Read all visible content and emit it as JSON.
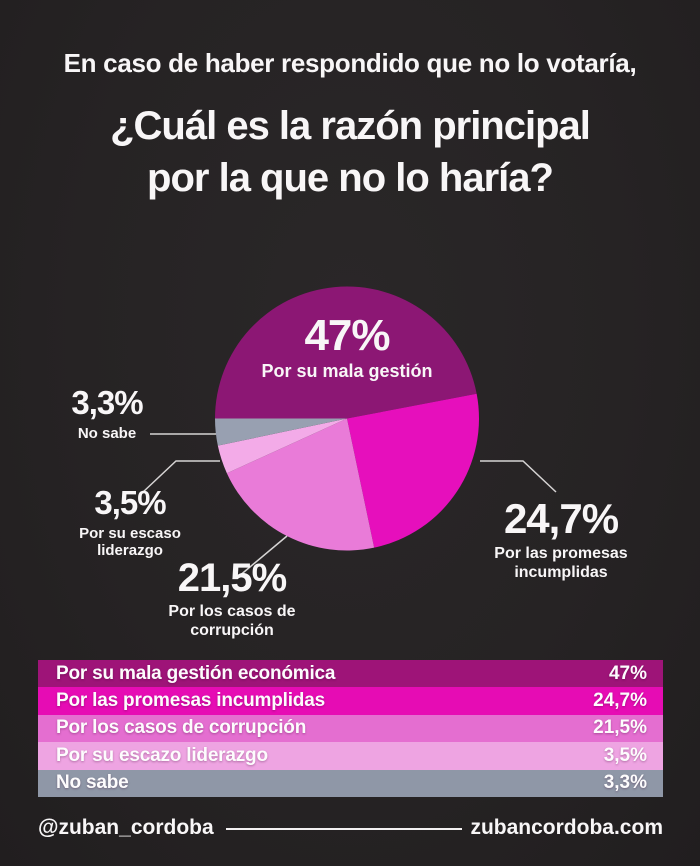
{
  "header": {
    "intro": "En caso de haber respondido que no lo votaría,",
    "question_line1": "¿Cuál es la razón principal",
    "question_line2": "por la que no lo haría?"
  },
  "chart_data": {
    "type": "pie",
    "title": "¿Cuál es la razón principal por la que no lo haría?",
    "direction": "clockwise",
    "start_angle_deg": 180,
    "legend_position": "callout-labels",
    "slices": [
      {
        "label": "Por su mala gestión",
        "value": 47.0,
        "display": "47%",
        "color": "#8c1774"
      },
      {
        "label": "Por las promesas incumplidas",
        "value": 24.7,
        "display": "24,7%",
        "color": "#e60fbc"
      },
      {
        "label": "Por los casos de corrupción",
        "value": 21.5,
        "display": "21,5%",
        "color": "#e97bd8"
      },
      {
        "label": "Por su escaso liderazgo",
        "value": 3.5,
        "display": "3,5%",
        "color": "#f3abe8"
      },
      {
        "label": "No sabe",
        "value": 3.3,
        "display": "3,3%",
        "color": "#98a0b1"
      }
    ]
  },
  "table": {
    "rows": [
      {
        "label": "Por su mala gestión económica",
        "value": "47%",
        "color": "#9e1478"
      },
      {
        "label": "Por las promesas incumplidas",
        "value": "24,7%",
        "color": "#e60cb4"
      },
      {
        "label": "Por los casos de corrupción",
        "value": "21,5%",
        "color": "#e46ed0"
      },
      {
        "label": "Por su escazo liderazgo",
        "value": "3,5%",
        "color": "#eea4e2"
      },
      {
        "label": "No sabe",
        "value": "3,3%",
        "color": "#8f97a7"
      }
    ]
  },
  "footer": {
    "handle": "@zuban_cordoba",
    "website": "zubancordoba.com"
  },
  "colors": {
    "background": "#262324",
    "text": "#f8f6f7",
    "callout_line": "#d6d4d4"
  }
}
